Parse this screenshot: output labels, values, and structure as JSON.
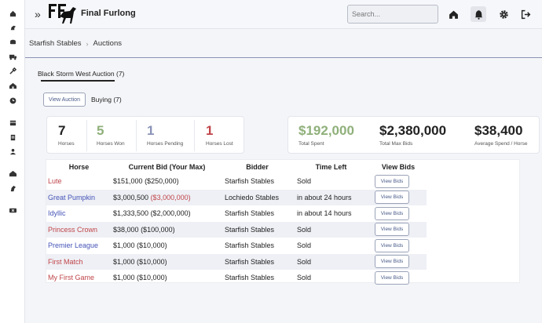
{
  "app": {
    "title": "Final Furlong",
    "logo_text": "FF"
  },
  "search": {
    "placeholder": "Search..."
  },
  "breadcrumb": [
    "Starfish Stables",
    "Auctions"
  ],
  "tabs": {
    "main": "Black Storm West Auction (7)",
    "view_auction": "View Auction",
    "buying": "Buying (7)"
  },
  "stats_left": [
    {
      "value": "7",
      "label": "Horses",
      "color": "#222222"
    },
    {
      "value": "5",
      "label": "Horses Won",
      "color": "#8fb07a"
    },
    {
      "value": "1",
      "label": "Horses Pending",
      "color": "#8a93b8"
    },
    {
      "value": "1",
      "label": "Horses Lost",
      "color": "#c0454a"
    }
  ],
  "stats_right": [
    {
      "value": "$192,000",
      "label": "Total Spent",
      "color": "#8fb07a"
    },
    {
      "value": "$2,380,000",
      "label": "Total Max Bids",
      "color": "#222222"
    },
    {
      "value": "$38,400",
      "label": "Average Spend / Horse",
      "color": "#222222"
    }
  ],
  "table": {
    "headers": [
      "Horse",
      "Current Bid (Your Max)",
      "Bidder",
      "Time Left",
      "View Bids"
    ],
    "button_label": "View Bids",
    "rows": [
      {
        "horse": "Lute",
        "horse_color": "red",
        "bid": "$151,000",
        "max": "($250,000)",
        "max_red": false,
        "bidder": "Starfish Stables",
        "time": "Sold"
      },
      {
        "horse": "Great Pumpkin",
        "horse_color": "blue",
        "bid": "$3,000,500",
        "max": "($3,000,000)",
        "max_red": true,
        "bidder": "Lochiedo Stables",
        "time": "in about 24 hours"
      },
      {
        "horse": "Idyllic",
        "horse_color": "blue",
        "bid": "$1,333,500",
        "max": "($2,000,000)",
        "max_red": false,
        "bidder": "Starfish Stables",
        "time": "in about 14 hours"
      },
      {
        "horse": "Princess Crown",
        "horse_color": "red",
        "bid": "$38,000",
        "max": "($100,000)",
        "max_red": false,
        "bidder": "Starfish Stables",
        "time": "Sold"
      },
      {
        "horse": "Premier League",
        "horse_color": "blue",
        "bid": "$1,000",
        "max": "($10,000)",
        "max_red": false,
        "bidder": "Starfish Stables",
        "time": "Sold"
      },
      {
        "horse": "First Match",
        "horse_color": "red",
        "bid": "$1,000",
        "max": "($10,000)",
        "max_red": false,
        "bidder": "Starfish Stables",
        "time": "Sold"
      },
      {
        "horse": "My First Game",
        "horse_color": "red",
        "bid": "$1,000",
        "max": "($10,000)",
        "max_red": false,
        "bidder": "Starfish Stables",
        "time": "Sold"
      }
    ]
  }
}
